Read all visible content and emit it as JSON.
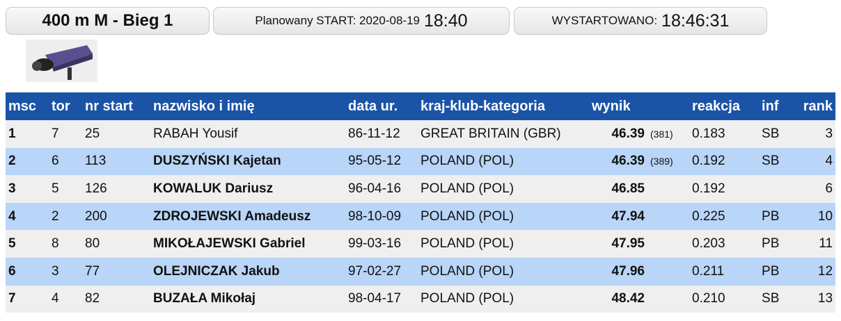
{
  "header": {
    "event": "400 m M - Bieg 1",
    "planned_label": "Planowany START: 2020-08-19",
    "planned_time": "18:40",
    "started_label": "WYSTARTOWANO:",
    "started_time": "18:46:31"
  },
  "table": {
    "headers": [
      "msc",
      "tor",
      "nr start",
      "nazwisko i imię",
      "data ur.",
      "kraj-klub-kategoria",
      "wynik",
      "reakcja",
      "inf",
      "rank"
    ],
    "rows": [
      [
        "1",
        "7",
        "25",
        "RABAH Yousif",
        "86-11-12",
        "GREAT BRITAIN (GBR)",
        "46.39",
        "(381)",
        "0.183",
        "SB",
        "3"
      ],
      [
        "2",
        "6",
        "113",
        "DUSZYŃSKI Kajetan",
        "95-05-12",
        "POLAND (POL)",
        "46.39",
        "(389)",
        "0.192",
        "SB",
        "4"
      ],
      [
        "3",
        "5",
        "126",
        "KOWALUK Dariusz",
        "96-04-16",
        "POLAND (POL)",
        "46.85",
        null,
        "0.192",
        null,
        "6"
      ],
      [
        "4",
        "2",
        "200",
        "ZDROJEWSKI Amadeusz",
        "98-10-09",
        "POLAND (POL)",
        "47.94",
        null,
        "0.225",
        "PB",
        "10"
      ],
      [
        "5",
        "8",
        "80",
        "MIKOŁAJEWSKI Gabriel",
        "99-03-16",
        "POLAND (POL)",
        "47.95",
        null,
        "0.203",
        "PB",
        "11"
      ],
      [
        "6",
        "3",
        "77",
        "OLEJNICZAK Jakub",
        "97-02-27",
        "POLAND (POL)",
        "47.96",
        null,
        "0.211",
        "PB",
        "12"
      ],
      [
        "7",
        "4",
        "82",
        "BUZAŁA Mikołaj",
        "98-04-17",
        "POLAND (POL)",
        "48.42",
        null,
        "0.210",
        "SB",
        "13"
      ]
    ]
  }
}
